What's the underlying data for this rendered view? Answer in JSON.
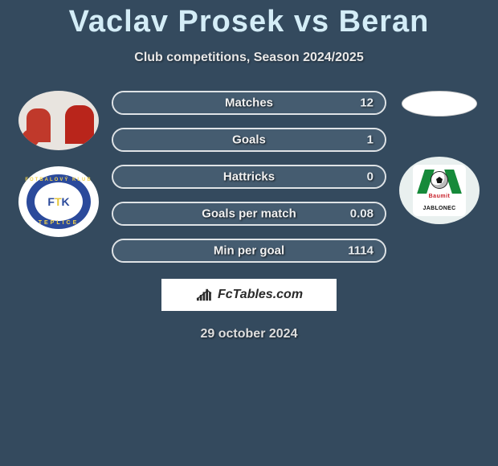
{
  "title": "Vaclav Prosek vs Beran",
  "subtitle": "Club competitions, Season 2024/2025",
  "left": {
    "player_avatar_colors": {
      "bg": "#e8e4df",
      "shirt": "#c0392b"
    },
    "club": {
      "name": "FK Teplice",
      "ring_color": "#2b4a9b",
      "top_text": "FOTBALOVÝ KLUB",
      "bottom_text": "TEPLICE",
      "center_text": "FTK"
    }
  },
  "right": {
    "player_avatar_colors": {
      "bg": "#ffffff"
    },
    "club": {
      "name": "FK Jablonec",
      "stripe_color": "#168a3a",
      "sponsor": "Baumit",
      "label": "JABLONEC"
    }
  },
  "bars": {
    "border_color": "#dfe3e6",
    "fill_color": "#455c70",
    "items": [
      {
        "label": "Matches",
        "value": "12",
        "fill_pct": 100
      },
      {
        "label": "Goals",
        "value": "1",
        "fill_pct": 100
      },
      {
        "label": "Hattricks",
        "value": "0",
        "fill_pct": 100
      },
      {
        "label": "Goals per match",
        "value": "0.08",
        "fill_pct": 100
      },
      {
        "label": "Min per goal",
        "value": "1114",
        "fill_pct": 100
      }
    ]
  },
  "brand": {
    "text": "FcTables.com",
    "icon_bars": [
      4,
      8,
      12,
      16,
      12
    ]
  },
  "date": "29 october 2024",
  "colors": {
    "background": "#344a5e",
    "title": "#d4edf7",
    "text": "#ffffff"
  }
}
